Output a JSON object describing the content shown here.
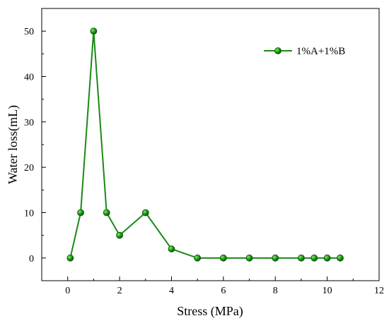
{
  "chart_data": {
    "type": "line",
    "title": "",
    "xlabel": "Stress (MPa)",
    "ylabel": "Water loss(mL)",
    "xlim": [
      -1,
      12
    ],
    "ylim": [
      -5,
      55
    ],
    "x_ticks": [
      0,
      2,
      4,
      6,
      8,
      10,
      12
    ],
    "x_tick_labels": [
      "0",
      "2",
      "4",
      "6",
      "8",
      "10",
      "12"
    ],
    "y_ticks": [
      0,
      10,
      20,
      30,
      40,
      50
    ],
    "y_tick_labels": [
      "0",
      "10",
      "20",
      "30",
      "40",
      "50"
    ],
    "grid": false,
    "legend_position": "top-right",
    "series": [
      {
        "name": "1%A+1%B",
        "color": "#1a8a12",
        "marker": "circle",
        "x": [
          0.1,
          0.5,
          1,
          1.5,
          2,
          3,
          4,
          5,
          6,
          7,
          8,
          9,
          9.5,
          10,
          10.5
        ],
        "y": [
          0,
          10,
          50,
          10,
          5,
          10,
          2,
          0,
          0,
          0,
          0,
          0,
          0,
          0,
          0
        ]
      }
    ]
  }
}
